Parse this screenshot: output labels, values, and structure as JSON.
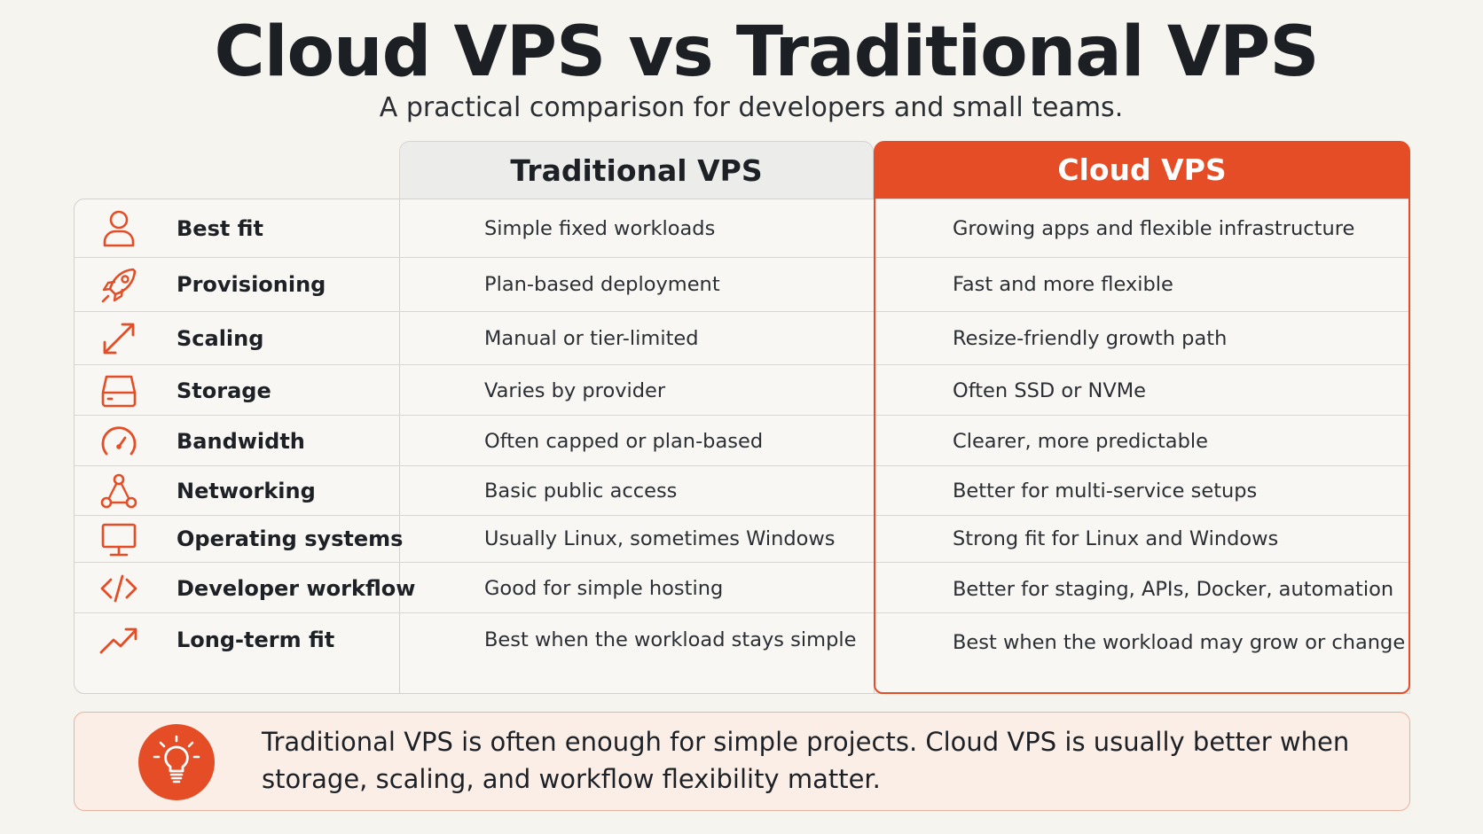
{
  "title": "Cloud VPS vs Traditional VPS",
  "subtitle": "A practical comparison for developers and small teams.",
  "columns": {
    "traditional": "Traditional VPS",
    "cloud": "Cloud VPS"
  },
  "accent_color": "#e44d26",
  "rows": [
    {
      "icon": "user-icon",
      "feature": "Best fit",
      "traditional": "Simple fixed workloads",
      "cloud": "Growing apps and flexible infrastructure"
    },
    {
      "icon": "rocket-icon",
      "feature": "Provisioning",
      "traditional": "Plan-based deployment",
      "cloud": "Fast and more flexible"
    },
    {
      "icon": "resize-arrow-icon",
      "feature": "Scaling",
      "traditional": "Manual or tier-limited",
      "cloud": "Resize-friendly growth path"
    },
    {
      "icon": "drive-icon",
      "feature": "Storage",
      "traditional": "Varies by provider",
      "cloud": "Often SSD or NVMe"
    },
    {
      "icon": "speedometer-icon",
      "feature": "Bandwidth",
      "traditional": "Often capped or plan-based",
      "cloud": "Clearer, more predictable"
    },
    {
      "icon": "network-icon",
      "feature": "Networking",
      "traditional": "Basic public access",
      "cloud": "Better for multi-service setups"
    },
    {
      "icon": "monitor-icon",
      "feature": "Operating systems",
      "traditional": "Usually Linux, sometimes Windows",
      "cloud": "Strong fit for Linux and Windows"
    },
    {
      "icon": "code-icon",
      "feature": "Developer workflow",
      "traditional": "Good for simple hosting",
      "cloud": "Better for staging, APIs, Docker, automation"
    },
    {
      "icon": "trend-up-icon",
      "feature": "Long-term fit",
      "traditional": "Best when the workload stays simple",
      "cloud": "Best when the workload may grow or change"
    }
  ],
  "note": {
    "icon": "lightbulb-icon",
    "text_line1": "Traditional VPS is often enough for simple projects. Cloud VPS is usually better when",
    "text_line2": "storage, scaling, and workflow flexibility matter."
  }
}
